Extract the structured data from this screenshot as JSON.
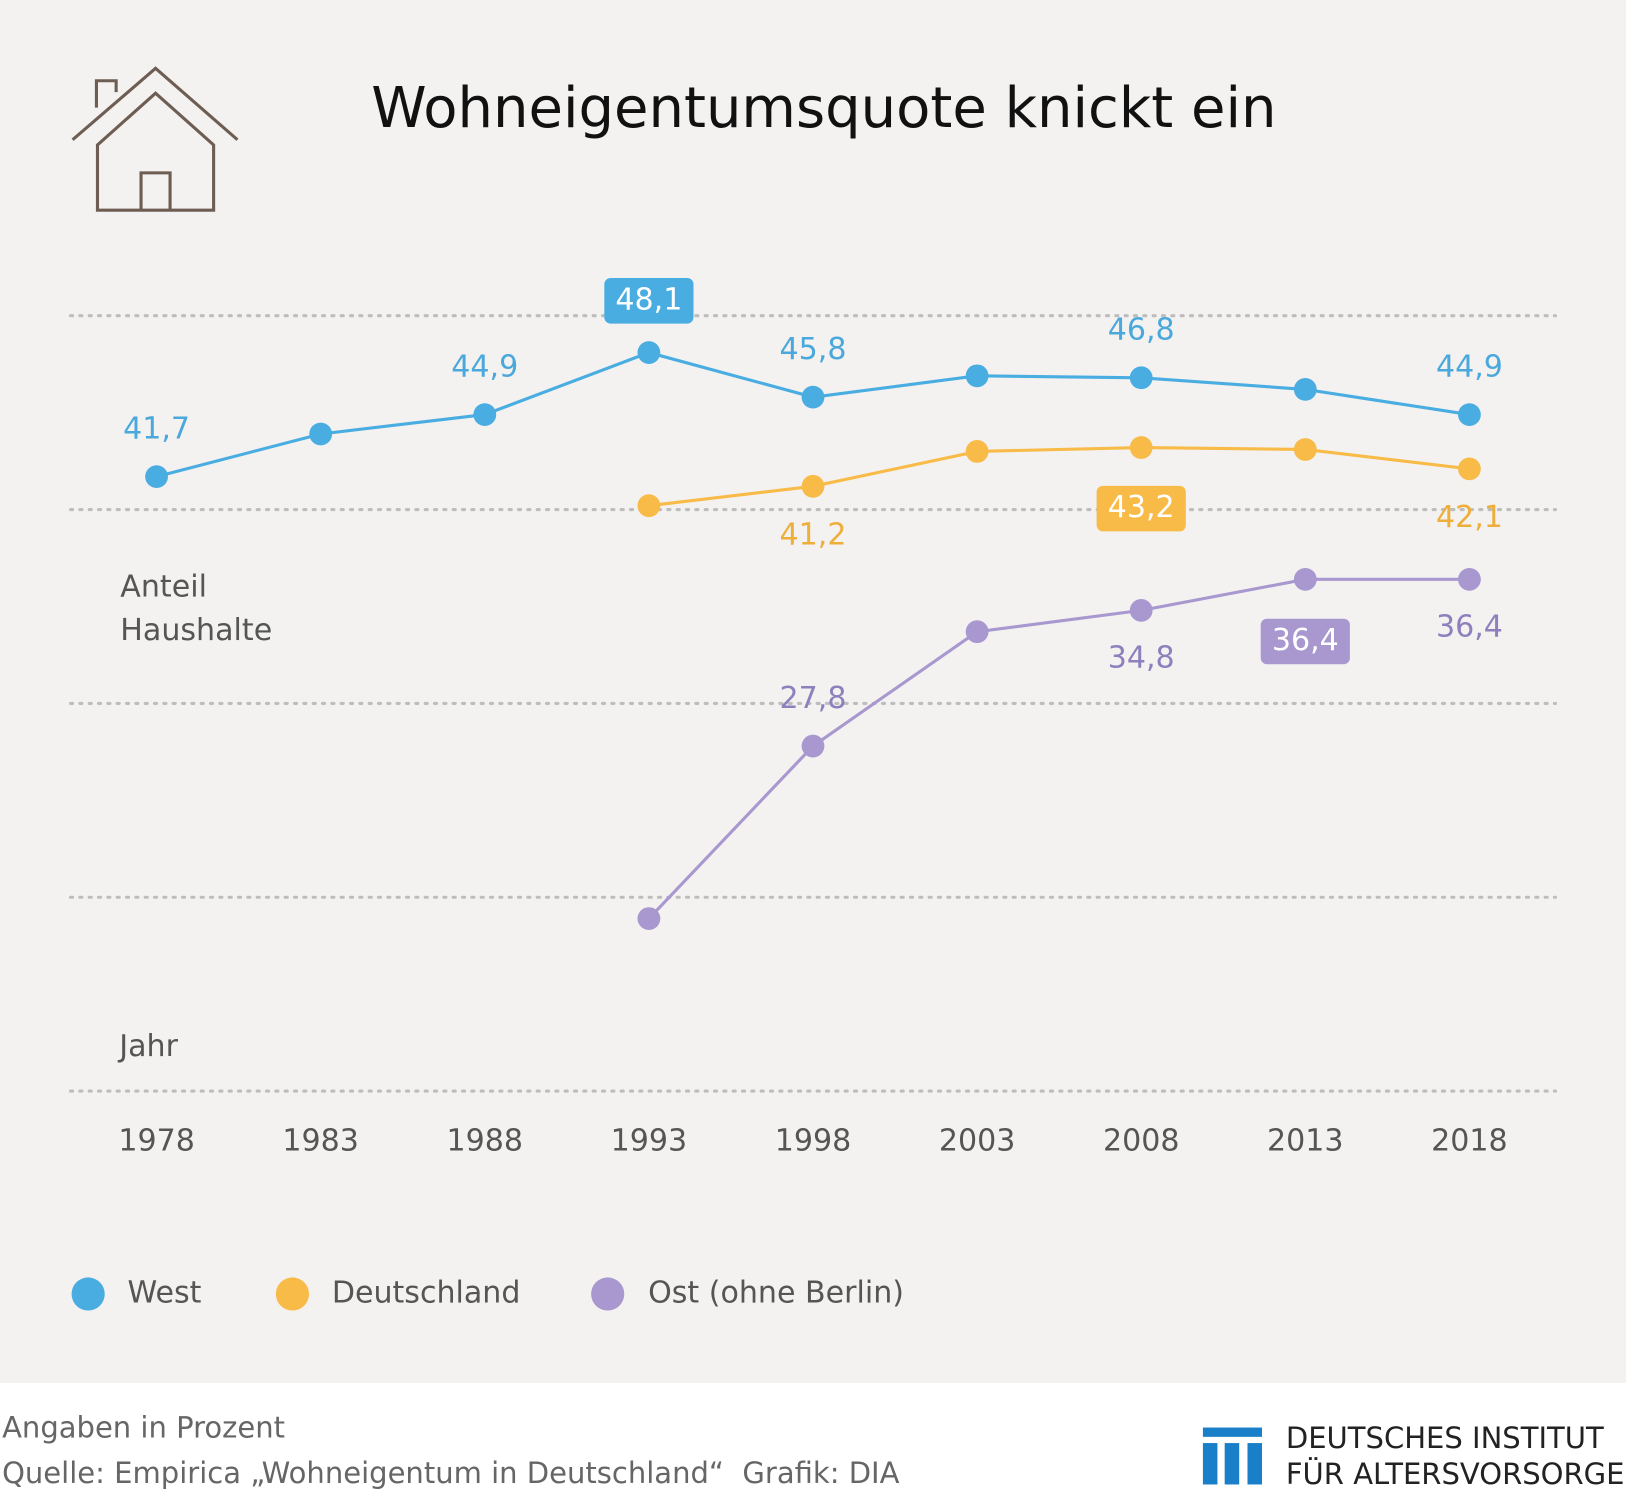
{
  "chart_data": {
    "type": "line",
    "title": "Wohneigentumsquote knickt ein",
    "y_label": "Anteil Haushalte",
    "x_label": "Jahr",
    "categories": [
      "1978",
      "1983",
      "1988",
      "1993",
      "1998",
      "2003",
      "2008",
      "2013",
      "2018"
    ],
    "series": [
      {
        "name": "West",
        "color": "#4aade2",
        "highlight_index": 3,
        "values": [
          41.7,
          43.9,
          44.9,
          48.1,
          45.8,
          46.9,
          46.8,
          46.2,
          44.9
        ],
        "value_labels": [
          "41,7",
          null,
          "44,9",
          "48,1",
          "45,8",
          null,
          "46,8",
          null,
          "44,9"
        ]
      },
      {
        "name": "Deutschland",
        "color": "#f8bb48",
        "highlight_index": 6,
        "values": [
          null,
          null,
          null,
          40.2,
          41.2,
          43.0,
          43.2,
          43.1,
          42.1
        ],
        "value_labels": [
          null,
          null,
          null,
          null,
          "41,2",
          null,
          "43,2",
          null,
          "42,1"
        ]
      },
      {
        "name": "Ost (ohne Berlin)",
        "color": "#a898cf",
        "highlight_index": 7,
        "values": [
          null,
          null,
          null,
          18.9,
          27.8,
          33.7,
          34.8,
          36.4,
          36.4
        ],
        "value_labels": [
          null,
          null,
          null,
          null,
          "27,8",
          null,
          "34,8",
          "36,4",
          "36,4"
        ]
      }
    ],
    "ylim": [
      10,
      50
    ],
    "yticks": [
      10,
      20,
      30,
      40,
      50
    ],
    "grid": true,
    "footer": {
      "note": "Angaben in Prozent",
      "source": "Quelle: Empirica „Wohneigentum in Deutschland“  Grafik: DIA",
      "logo_line1": "DEUTSCHES INSTITUT",
      "logo_line2": "FÜR ALTERSVORSORGE"
    }
  }
}
